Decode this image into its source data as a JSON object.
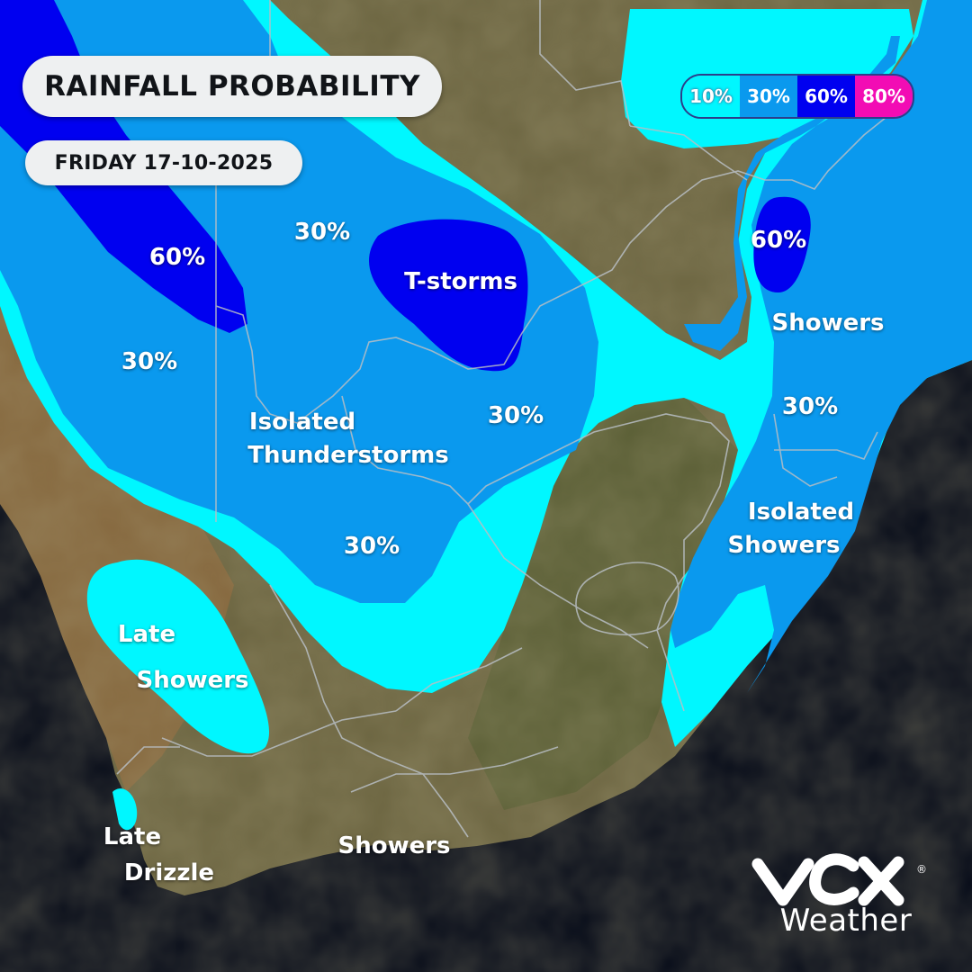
{
  "header": {
    "title": "RAINFALL PROBABILITY",
    "date": "FRIDAY 17-10-2025"
  },
  "legend": [
    {
      "label": "10%",
      "color": "#00f7ff"
    },
    {
      "label": "30%",
      "color": "#0a99ee"
    },
    {
      "label": "60%",
      "color": "#0000f0"
    },
    {
      "label": "80%",
      "color": "#f20cb4"
    }
  ],
  "colors": {
    "land": "#6b6440",
    "ocean": "#050a18",
    "prob_10": "#00f7ff",
    "prob_30": "#0a99ee",
    "prob_60": "#0000f0",
    "prob_80": "#f20cb4",
    "borders": "#b8bec4"
  },
  "labels": {
    "nw_60": "60%",
    "nw_30_north": "30%",
    "west_30": "30%",
    "central_tstorms": "T-storms",
    "central_isolated": "Isolated",
    "central_thunderstorms": "Thunderstorms",
    "central_30_east": "30%",
    "central_30_south": "30%",
    "ne_60": "60%",
    "ne_showers": "Showers",
    "east_30": "30%",
    "east_isolated": "Isolated",
    "east_showers": "Showers",
    "sw_late": "Late",
    "sw_showers": "Showers",
    "cape_late": "Late",
    "cape_drizzle": "Drizzle",
    "south_showers": "Showers"
  },
  "brand": {
    "logo_icon": "vox-logo",
    "name": "Weather",
    "registered": "®"
  }
}
